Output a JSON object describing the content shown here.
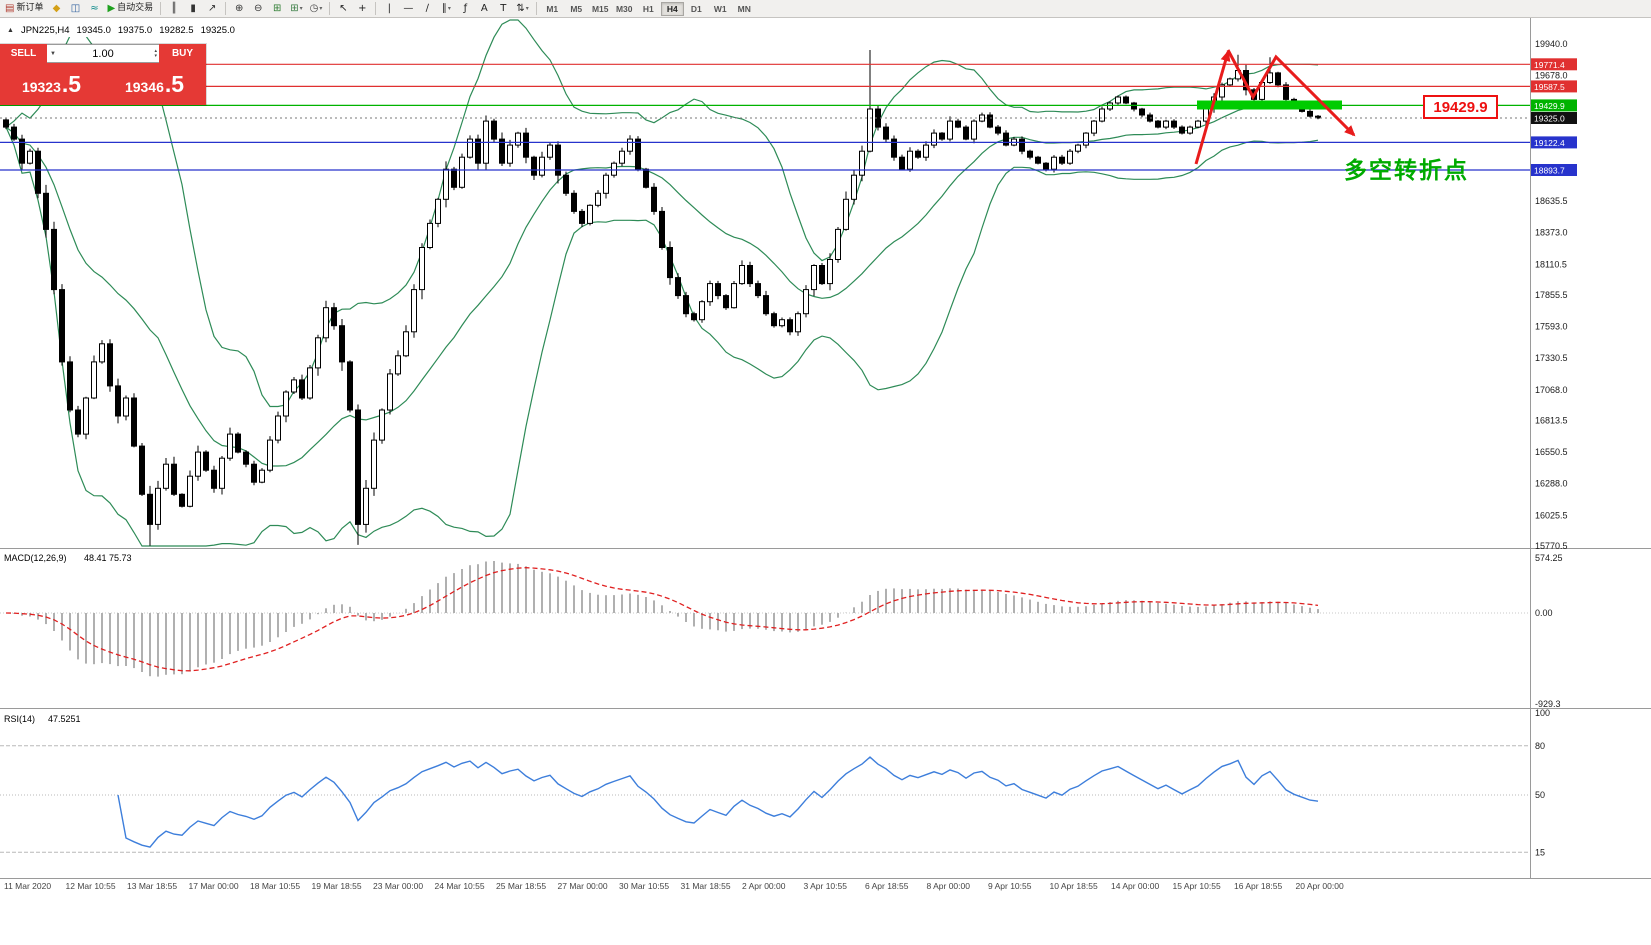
{
  "toolbar": {
    "new_order_label": "新订单",
    "autotrading_label": "自动交易",
    "items": [
      {
        "type": "button",
        "name": "new-order-button",
        "icon": "new-order-icon",
        "glyph": "▤",
        "glyph_color": "#b03a2e",
        "label_key": "new_order_label"
      },
      {
        "type": "icon",
        "name": "expert-advisors-icon",
        "glyph": "◆",
        "glyph_color": "#d4a017"
      },
      {
        "type": "icon",
        "name": "market-watch-icon",
        "glyph": "◫",
        "glyph_color": "#2e5f9e"
      },
      {
        "type": "icon",
        "name": "signals-icon",
        "glyph": "≈",
        "glyph_color": "#0e8a8a"
      },
      {
        "type": "button",
        "name": "autotrading-button",
        "icon": "autotrading-play-icon",
        "glyph": "▶",
        "glyph_color": "#1fa11f",
        "label_key": "autotrading_label"
      },
      {
        "type": "sep"
      },
      {
        "type": "icon",
        "name": "bar-chart-icon",
        "glyph": "║",
        "glyph_color": "#333333"
      },
      {
        "type": "icon",
        "name": "candlestick-icon",
        "glyph": "▮",
        "glyph_color": "#333333"
      },
      {
        "type": "icon",
        "name": "line-chart-icon",
        "glyph": "↗",
        "glyph_color": "#333333"
      },
      {
        "type": "sep"
      },
      {
        "type": "icon",
        "name": "zoom-in-icon",
        "glyph": "⊕",
        "glyph_color": "#333333"
      },
      {
        "type": "icon",
        "name": "zoom-out-icon",
        "glyph": "⊖",
        "glyph_color": "#333333"
      },
      {
        "type": "icon",
        "name": "tile-windows-icon",
        "glyph": "⊞",
        "glyph_color": "#2e7d32"
      },
      {
        "type": "icon",
        "name": "new-chart-icon",
        "glyph": "⊞",
        "glyph_color": "#3a7d44",
        "caret": true
      },
      {
        "type": "icon",
        "name": "refresh-icon",
        "glyph": "◷",
        "glyph_color": "#444444",
        "caret": true
      },
      {
        "type": "sep"
      },
      {
        "type": "icon",
        "name": "cursor-icon",
        "glyph": "↖",
        "glyph_color": "#222222"
      },
      {
        "type": "icon",
        "name": "crosshair-icon",
        "glyph": "+",
        "glyph_color": "#222222"
      },
      {
        "type": "sep"
      },
      {
        "type": "icon",
        "name": "vertical-line-icon",
        "glyph": "|",
        "glyph_color": "#222222"
      },
      {
        "type": "icon",
        "name": "horizontal-line-icon",
        "glyph": "—",
        "glyph_color": "#222222"
      },
      {
        "type": "icon",
        "name": "trendline-icon",
        "glyph": "∕",
        "glyph_color": "#222222"
      },
      {
        "type": "icon",
        "name": "channel-icon",
        "glyph": "∥",
        "glyph_color": "#222222",
        "caret": true
      },
      {
        "type": "icon",
        "name": "fibonacci-icon",
        "glyph": "ƒ",
        "glyph_color": "#222222"
      },
      {
        "type": "icon",
        "name": "text-icon",
        "glyph": "A",
        "glyph_color": "#222222"
      },
      {
        "type": "icon",
        "name": "label-icon",
        "glyph": "T",
        "glyph_color": "#222222"
      },
      {
        "type": "icon",
        "name": "shapes-icon",
        "glyph": "⇅",
        "glyph_color": "#222222",
        "caret": true
      },
      {
        "type": "sep"
      }
    ],
    "timeframes": [
      "M1",
      "M5",
      "M15",
      "M30",
      "H1",
      "H4",
      "D1",
      "W1",
      "MN"
    ],
    "active_timeframe": "H4"
  },
  "symbol_bar": {
    "symbol": "JPN225,H4",
    "open": "19345.0",
    "high": "19375.0",
    "low": "19282.5",
    "close": "19325.0"
  },
  "trade_panel": {
    "sell_label": "SELL",
    "buy_label": "BUY",
    "volume": "1.00",
    "sell_price": "19323.5",
    "buy_price": "19346.5"
  },
  "annotations": {
    "turning_point": "多空转折点",
    "price_box": "19429.9"
  },
  "chart_data": {
    "type": "candlestick",
    "title": "JPN225,H4",
    "timeframe": "H4",
    "price_axis_labels": [
      19940.0,
      19678.0,
      18635.5,
      18373.0,
      18110.5,
      17855.5,
      17593.0,
      17330.5,
      17068.0,
      16813.5,
      16550.5,
      16288.0,
      16025.5,
      15770.5
    ],
    "hlines": [
      {
        "price": 19771.4,
        "label": "19771.4",
        "color": "#e03030"
      },
      {
        "price": 19587.5,
        "label": "19587.5",
        "color": "#e03030"
      },
      {
        "price": 19429.9,
        "label": "19429.9",
        "color": "#00b300"
      },
      {
        "price": 19325.0,
        "label": "19325.0",
        "color": "#111111",
        "style": "current"
      },
      {
        "price": 19122.4,
        "label": "19122.4",
        "color": "#2733cc"
      },
      {
        "price": 18893.7,
        "label": "18893.7",
        "color": "#2733cc"
      }
    ],
    "candles": {
      "closes": [
        19250,
        19150,
        18950,
        19050,
        18700,
        18400,
        17900,
        17300,
        16900,
        16700,
        17000,
        17300,
        17450,
        17100,
        16850,
        17000,
        16600,
        16200,
        15950,
        16250,
        16450,
        16200,
        16100,
        16350,
        16550,
        16400,
        16250,
        16500,
        16700,
        16550,
        16450,
        16300,
        16400,
        16650,
        16850,
        17050,
        17150,
        17000,
        17250,
        17500,
        17750,
        17600,
        17300,
        16900,
        15950,
        16250,
        16650,
        16900,
        17200,
        17350,
        17550,
        17900,
        18250,
        18450,
        18650,
        18900,
        18750,
        19000,
        19150,
        18950,
        19300,
        19150,
        18950,
        19100,
        19200,
        19000,
        18850,
        19000,
        19100,
        18850,
        18700,
        18550,
        18450,
        18600,
        18700,
        18850,
        18950,
        19050,
        19150,
        18900,
        18750,
        18550,
        18250,
        18000,
        17850,
        17700,
        17650,
        17800,
        17950,
        17850,
        17750,
        17950,
        18100,
        17950,
        17850,
        17700,
        17600,
        17650,
        17550,
        17700,
        17900,
        18100,
        17950,
        18150,
        18400,
        18650,
        18850,
        19050,
        19400,
        19250,
        19150,
        19000,
        18900,
        19050,
        19000,
        19100,
        19200,
        19150,
        19300,
        19250,
        19150,
        19300,
        19350,
        19250,
        19200,
        19100,
        19150,
        19050,
        19000,
        18950,
        18900,
        19000,
        18950,
        19050,
        19100,
        19200,
        19300,
        19400,
        19450,
        19500,
        19450,
        19400,
        19350,
        19300,
        19250,
        19300,
        19250,
        19200,
        19250,
        19300,
        19400,
        19500,
        19600,
        19650,
        19720,
        19560,
        19480,
        19620,
        19700,
        19600,
        19480,
        19420,
        19380,
        19340,
        19325
      ],
      "wick_overrides": {
        "18": {
          "low": 15772
        },
        "44": {
          "low": 15780
        },
        "108": {
          "high": 19890
        },
        "154": {
          "high": 19850
        },
        "158": {
          "high": 19830
        }
      }
    },
    "indicators": {
      "bollinger": {
        "period": 20,
        "deviation": 2,
        "color": "#2e8b57"
      },
      "macd": {
        "label": "MACD(12,26,9)",
        "value_text": "48.41 75.73",
        "axis_labels": [
          "574.25",
          "0.00",
          "-929.3"
        ],
        "histogram_color": "#b0b0b0",
        "signal_color": "#e02020"
      },
      "rsi": {
        "label": "RSI(14)",
        "value_text": "47.5251",
        "axis_labels": [
          "100",
          "80",
          "50",
          "15"
        ],
        "levels": [
          80,
          50,
          15
        ],
        "color": "#3d7edb"
      }
    },
    "time_axis": [
      "11 Mar 2020",
      "12 Mar 10:55",
      "13 Mar 18:55",
      "17 Mar 00:00",
      "18 Mar 10:55",
      "19 Mar 18:55",
      "23 Mar 00:00",
      "24 Mar 10:55",
      "25 Mar 18:55",
      "27 Mar 00:00",
      "30 Mar 10:55",
      "31 Mar 18:55",
      "2 Apr 00:00",
      "3 Apr 10:55",
      "6 Apr 18:55",
      "8 Apr 00:00",
      "9 Apr 10:55",
      "10 Apr 18:55",
      "14 Apr 00:00",
      "15 Apr 10:55",
      "16 Apr 18:55",
      "20 Apr 00:00"
    ]
  }
}
